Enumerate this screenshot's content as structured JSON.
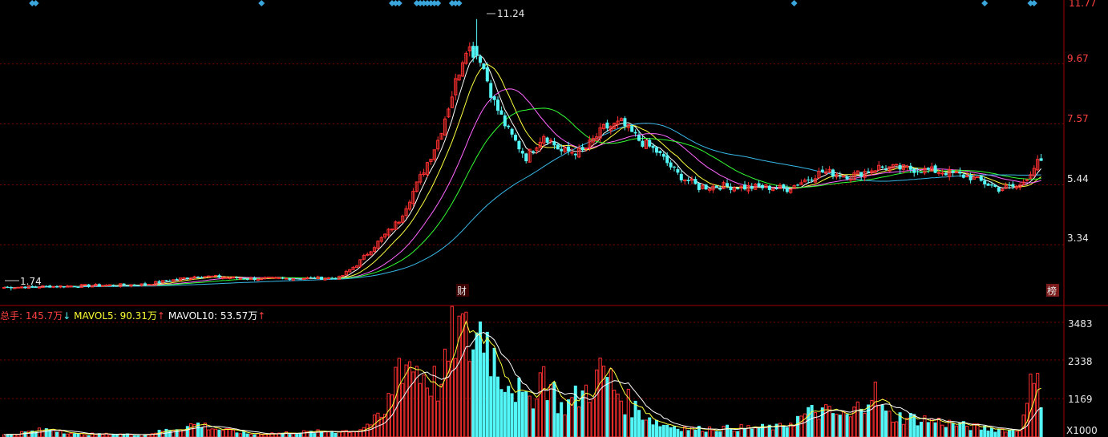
{
  "colors": {
    "up": "#ff3030",
    "down": "#54f7f7",
    "ma5": "#ffffff",
    "ma10": "#ffff40",
    "ma20": "#ff66ff",
    "ma30": "#33ff33",
    "ma60": "#38b8e8",
    "grid": "#7a0000",
    "axis_text": "#e8e8e8",
    "marker": "#3aa6dc"
  },
  "price_axis": {
    "ticks": [
      "11.77",
      "9.67",
      "7.57",
      "5.44",
      "3.34"
    ],
    "tick_values": [
      11.77,
      9.67,
      7.57,
      5.44,
      3.34
    ],
    "range": [
      1.3,
      11.85
    ]
  },
  "annotations": {
    "high_label": "11.24",
    "low_label": "1.74",
    "finance_marker": "财",
    "list_marker": "榜"
  },
  "volume_legend": {
    "total_label": "总手:",
    "total_value": "145.7万",
    "total_arrow": "↓",
    "mavol5_label": "MAVOL5:",
    "mavol5_value": "90.31万",
    "mavol5_arrow": "↑",
    "mavol10_label": "MAVOL10:",
    "mavol10_value": "53.57万",
    "mavol10_arrow": "↑"
  },
  "volume_axis": {
    "ticks": [
      "3483",
      "2338",
      "1169"
    ],
    "tick_values": [
      3483,
      2338,
      1169
    ],
    "unit": "X1000",
    "max": 3483
  },
  "chart_data": {
    "type": "candlestick",
    "series_names": [
      "MA5",
      "MA10",
      "MA20",
      "MA30",
      "MA60"
    ],
    "top_markers": [
      8,
      9,
      73,
      110,
      111,
      112,
      117,
      118,
      119,
      120,
      121,
      122,
      123,
      127,
      128,
      129,
      224,
      278,
      291,
      292
    ],
    "price_keypoints": [
      [
        0,
        1.85
      ],
      [
        40,
        1.95
      ],
      [
        55,
        2.25
      ],
      [
        70,
        2.15
      ],
      [
        95,
        2.18
      ],
      [
        100,
        2.65
      ],
      [
        105,
        3.3
      ],
      [
        112,
        4.2
      ],
      [
        118,
        5.7
      ],
      [
        123,
        7.0
      ],
      [
        127,
        8.6
      ],
      [
        131,
        10.3
      ],
      [
        135,
        9.9
      ],
      [
        139,
        8.3
      ],
      [
        143,
        7.3
      ],
      [
        148,
        6.4
      ],
      [
        153,
        7.2
      ],
      [
        158,
        6.6
      ],
      [
        164,
        6.6
      ],
      [
        170,
        7.4
      ],
      [
        175,
        7.6
      ],
      [
        180,
        7.0
      ],
      [
        185,
        6.6
      ],
      [
        191,
        5.8
      ],
      [
        197,
        5.35
      ],
      [
        203,
        5.4
      ],
      [
        210,
        5.35
      ],
      [
        216,
        5.35
      ],
      [
        222,
        5.3
      ],
      [
        232,
        5.9
      ],
      [
        240,
        5.75
      ],
      [
        248,
        6.05
      ],
      [
        256,
        6.0
      ],
      [
        266,
        5.9
      ],
      [
        274,
        5.7
      ],
      [
        282,
        5.3
      ],
      [
        288,
        5.4
      ],
      [
        291,
        5.9
      ],
      [
        293,
        6.2
      ]
    ],
    "volume_keypoints": [
      [
        0,
        60
      ],
      [
        10,
        200
      ],
      [
        14,
        260
      ],
      [
        20,
        90
      ],
      [
        40,
        80
      ],
      [
        55,
        400
      ],
      [
        60,
        250
      ],
      [
        70,
        90
      ],
      [
        100,
        200
      ],
      [
        108,
        650
      ],
      [
        112,
        2400
      ],
      [
        116,
        2200
      ],
      [
        120,
        1800
      ],
      [
        124,
        1500
      ],
      [
        128,
        3300
      ],
      [
        132,
        2800
      ],
      [
        136,
        3400
      ],
      [
        140,
        2100
      ],
      [
        144,
        1700
      ],
      [
        148,
        1000
      ],
      [
        153,
        2000
      ],
      [
        158,
        900
      ],
      [
        164,
        1300
      ],
      [
        170,
        2000
      ],
      [
        175,
        1200
      ],
      [
        180,
        800
      ],
      [
        186,
        400
      ],
      [
        195,
        250
      ],
      [
        220,
        300
      ],
      [
        230,
        800
      ],
      [
        240,
        600
      ],
      [
        246,
        1500
      ],
      [
        250,
        650
      ],
      [
        260,
        550
      ],
      [
        275,
        300
      ],
      [
        288,
        200
      ],
      [
        290,
        1550
      ],
      [
        293,
        1450
      ]
    ]
  }
}
